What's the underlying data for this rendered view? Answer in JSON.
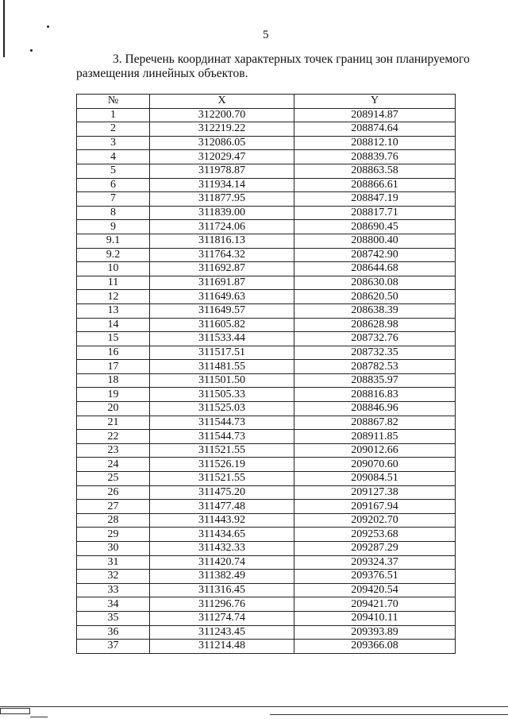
{
  "page_number": "5",
  "heading": "3. Перечень координат характерных точек границ зон планируемого размещения линейных объектов.",
  "table": {
    "headers": [
      "№",
      "X",
      "Y"
    ],
    "rows": [
      [
        "1",
        "312200.70",
        "208914.87"
      ],
      [
        "2",
        "312219.22",
        "208874.64"
      ],
      [
        "3",
        "312086.05",
        "208812.10"
      ],
      [
        "4",
        "312029.47",
        "208839.76"
      ],
      [
        "5",
        "311978.87",
        "208863.58"
      ],
      [
        "6",
        "311934.14",
        "208866.61"
      ],
      [
        "7",
        "311877.95",
        "208847.19"
      ],
      [
        "8",
        "311839.00",
        "208817.71"
      ],
      [
        "9",
        "311724.06",
        "208690.45"
      ],
      [
        "9.1",
        "311816.13",
        "208800.40"
      ],
      [
        "9.2",
        "311764.32",
        "208742.90"
      ],
      [
        "10",
        "311692.87",
        "208644.68"
      ],
      [
        "11",
        "311691.87",
        "208630.08"
      ],
      [
        "12",
        "311649.63",
        "208620.50"
      ],
      [
        "13",
        "311649.57",
        "208638.39"
      ],
      [
        "14",
        "311605.82",
        "208628.98"
      ],
      [
        "15",
        "311533.44",
        "208732.76"
      ],
      [
        "16",
        "311517.51",
        "208732.35"
      ],
      [
        "17",
        "311481.55",
        "208782.53"
      ],
      [
        "18",
        "311501.50",
        "208835.97"
      ],
      [
        "19",
        "311505.33",
        "208816.83"
      ],
      [
        "20",
        "311525.03",
        "208846.96"
      ],
      [
        "21",
        "311544.73",
        "208867.82"
      ],
      [
        "22",
        "311544.73",
        "208911.85"
      ],
      [
        "23",
        "311521.55",
        "209012.66"
      ],
      [
        "24",
        "311526.19",
        "209070.60"
      ],
      [
        "25",
        "311521.55",
        "209084.51"
      ],
      [
        "26",
        "311475.20",
        "209127.38"
      ],
      [
        "27",
        "311477.48",
        "209167.94"
      ],
      [
        "28",
        "311443.92",
        "209202.70"
      ],
      [
        "29",
        "311434.65",
        "209253.68"
      ],
      [
        "30",
        "311432.33",
        "209287.29"
      ],
      [
        "31",
        "311420.74",
        "209324.37"
      ],
      [
        "32",
        "311382.49",
        "209376.51"
      ],
      [
        "33",
        "311316.45",
        "209420.54"
      ],
      [
        "34",
        "311296.76",
        "209421.70"
      ],
      [
        "35",
        "311274.74",
        "209410.11"
      ],
      [
        "36",
        "311243.45",
        "209393.89"
      ],
      [
        "37",
        "311214.48",
        "209366.08"
      ]
    ]
  }
}
